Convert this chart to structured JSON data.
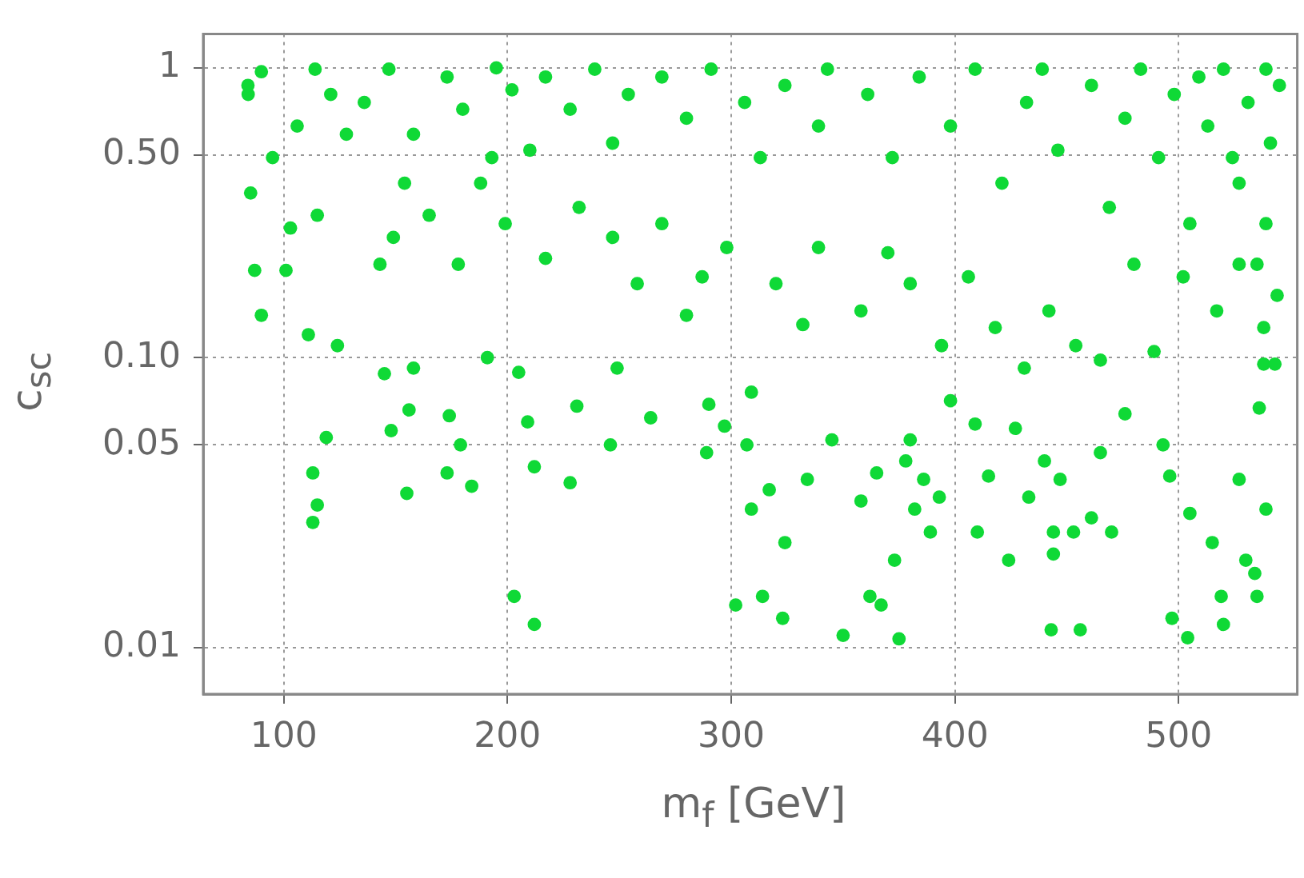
{
  "chart_data": {
    "type": "scatter",
    "xlabel": "m$_{f}$ [GeV]",
    "ylabel": "c$_{sc}$",
    "log": "y",
    "xlim": [
      64,
      553
    ],
    "ylim": [
      0.0069,
      1.31
    ],
    "xticks": [
      100,
      200,
      300,
      400,
      500
    ],
    "yticks": [
      0.01,
      {
        "value": 0.05,
        "label": "0.05"
      },
      {
        "value": 0.1,
        "label": "0.10"
      },
      {
        "value": 0.5,
        "label": "0.50"
      },
      1
    ],
    "grid": true,
    "marker": "circle",
    "legend": false,
    "series": [
      {
        "color": "#0fd936",
        "x": [
          84.1,
          85.2,
          87,
          90,
          101,
          111,
          113,
          115,
          113,
          119,
          124,
          145,
          148,
          155,
          156,
          158,
          173,
          174,
          179,
          184,
          191,
          203,
          205,
          209,
          212,
          212,
          228,
          231,
          246,
          249,
          264,
          290,
          289,
          297,
          302,
          307,
          309,
          309,
          314,
          317,
          323,
          324,
          334,
          345,
          350,
          358,
          362,
          365,
          367,
          373,
          375,
          378,
          380,
          382,
          386,
          389,
          393,
          398,
          409,
          410,
          415,
          424,
          427,
          433,
          440,
          443,
          444,
          444,
          447,
          453,
          456,
          461,
          470,
          465,
          476,
          493,
          497,
          504,
          496,
          505,
          515,
          519,
          520,
          527,
          530,
          534,
          535,
          539,
          536,
          538,
          543,
          544,
          103,
          115,
          128,
          143,
          149,
          154,
          165,
          178,
          188,
          193,
          199,
          210,
          217,
          232,
          247,
          258,
          269,
          280,
          287,
          298,
          320,
          332,
          339,
          358,
          370,
          380,
          394,
          406,
          418,
          431,
          442,
          454,
          465,
          480,
          489,
          502,
          517,
          527,
          538,
          84,
          90,
          95,
          106,
          114,
          121,
          136,
          147,
          158,
          173,
          180,
          195,
          202,
          217,
          228,
          239,
          247,
          254,
          269,
          280,
          291,
          306,
          313,
          324,
          339,
          343,
          361,
          372,
          384,
          398,
          409,
          421,
          432,
          439,
          446,
          461,
          469,
          476,
          483,
          491,
          498,
          505,
          513,
          520,
          527,
          531,
          539,
          541,
          539,
          535,
          545,
          524,
          509
        ],
        "values": [
          0.81,
          0.37,
          0.2,
          0.14,
          0.2,
          0.12,
          0.04,
          0.031,
          0.027,
          0.053,
          0.11,
          0.088,
          0.056,
          0.034,
          0.066,
          0.092,
          0.04,
          0.063,
          0.05,
          0.036,
          0.1,
          0.015,
          0.089,
          0.06,
          0.042,
          0.012,
          0.037,
          0.068,
          0.05,
          0.092,
          0.062,
          0.069,
          0.047,
          0.058,
          0.014,
          0.05,
          0.076,
          0.03,
          0.015,
          0.035,
          0.0126,
          0.023,
          0.038,
          0.052,
          0.011,
          0.032,
          0.015,
          0.04,
          0.014,
          0.02,
          0.0107,
          0.044,
          0.052,
          0.03,
          0.038,
          0.025,
          0.033,
          0.071,
          0.059,
          0.025,
          0.039,
          0.02,
          0.057,
          0.033,
          0.044,
          0.0115,
          0.021,
          0.025,
          0.038,
          0.025,
          0.0115,
          0.028,
          0.025,
          0.047,
          0.064,
          0.05,
          0.0126,
          0.0108,
          0.039,
          0.029,
          0.023,
          0.015,
          0.012,
          0.038,
          0.02,
          0.018,
          0.015,
          0.03,
          0.067,
          0.095,
          0.095,
          0.164,
          0.28,
          0.31,
          0.59,
          0.21,
          0.26,
          0.4,
          0.31,
          0.21,
          0.4,
          0.49,
          0.29,
          0.52,
          0.22,
          0.33,
          0.26,
          0.18,
          0.29,
          0.14,
          0.19,
          0.24,
          0.18,
          0.13,
          0.24,
          0.145,
          0.23,
          0.18,
          0.11,
          0.19,
          0.127,
          0.092,
          0.145,
          0.11,
          0.098,
          0.21,
          0.105,
          0.19,
          0.145,
          0.21,
          0.127,
          0.87,
          0.97,
          0.49,
          0.63,
          0.99,
          0.81,
          0.76,
          0.99,
          0.59,
          0.93,
          0.72,
          1.0,
          0.84,
          0.93,
          0.72,
          0.99,
          0.55,
          0.81,
          0.93,
          0.67,
          0.99,
          0.76,
          0.49,
          0.87,
          0.63,
          0.99,
          0.81,
          0.49,
          0.93,
          0.63,
          0.99,
          0.4,
          0.76,
          0.99,
          0.52,
          0.87,
          0.33,
          0.67,
          0.99,
          0.49,
          0.81,
          0.29,
          0.63,
          0.99,
          0.4,
          0.76,
          0.99,
          0.55,
          0.29,
          0.21,
          0.87,
          0.49,
          0.93
        ]
      }
    ]
  }
}
